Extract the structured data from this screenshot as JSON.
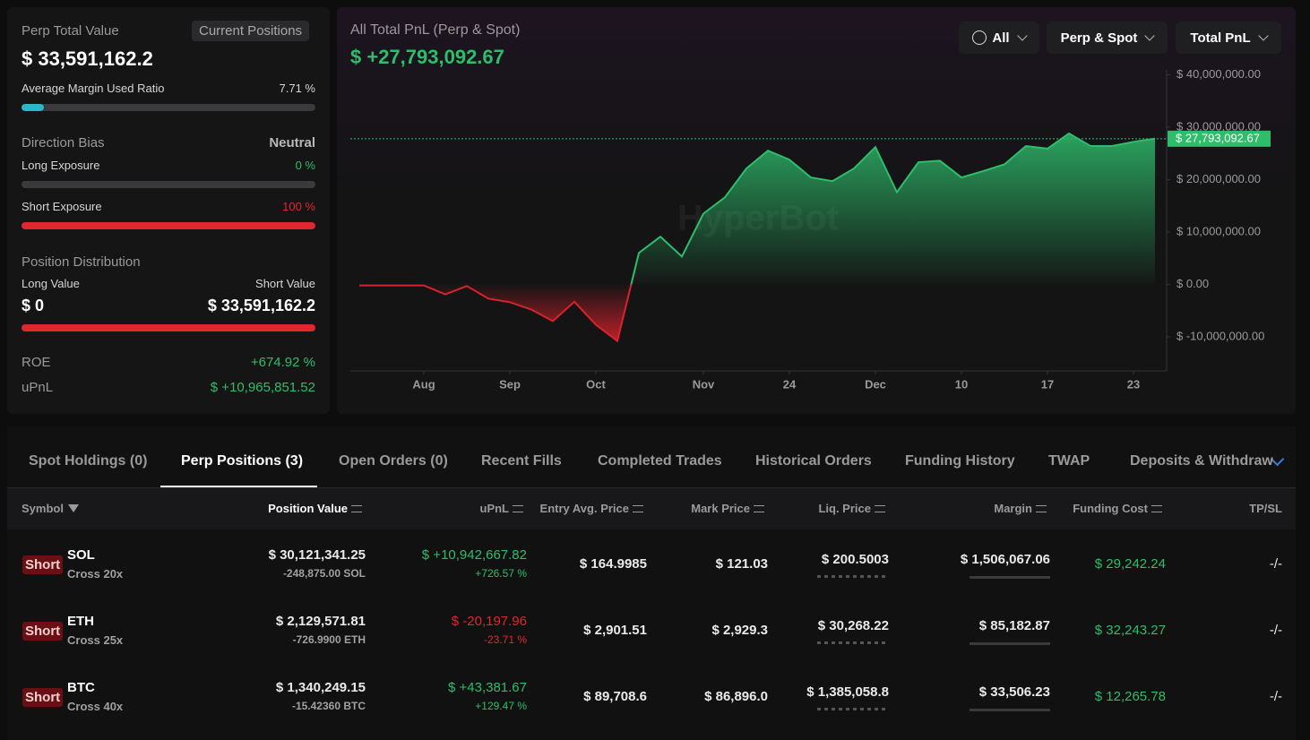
{
  "summary": {
    "perp_total_value_label": "Perp Total Value",
    "current_positions": "Current Positions",
    "perp_total_value": "$ 33,591,162.2",
    "margin_ratio_label": "Average Margin Used Ratio",
    "margin_ratio": {
      "value": 7.71,
      "label": "7.71 %"
    },
    "direction_bias_label": "Direction Bias",
    "direction_bias": "Neutral",
    "long_exposure_label": "Long Exposure",
    "long_exposure": {
      "value": 0,
      "label": "0 %"
    },
    "short_exposure_label": "Short Exposure",
    "short_exposure": {
      "value": 100,
      "label": "100 %"
    },
    "position_distribution_label": "Position Distribution",
    "long_value_label": "Long Value",
    "short_value_label": "Short Value",
    "long_value": "$ 0",
    "short_value": "$ 33,591,162.2",
    "roe_label": "ROE",
    "roe": "+674.92 %",
    "upnl_label": "uPnL",
    "upnl": "$ +10,965,851.52"
  },
  "pnl_chart": {
    "type": "area",
    "title": "All Total PnL (Perp & Spot)",
    "headline": "$ +27,793,092.67",
    "watermark": "HyperBot",
    "filters": [
      "All",
      "Perp & Spot",
      "Total PnL"
    ],
    "values": [
      -200000,
      -200000,
      -200000,
      -200000,
      -1900000,
      -300000,
      -2700000,
      -3400000,
      -4800000,
      -7000000,
      -3300000,
      -7700000,
      -10800000,
      6000000,
      9100000,
      5300000,
      13500000,
      16600000,
      22100000,
      25500000,
      23800000,
      20400000,
      19700000,
      22100000,
      26200000,
      17600000,
      23300000,
      23600000,
      20400000,
      21600000,
      22900000,
      26400000,
      25900000,
      28800000,
      26400000,
      26400000,
      27200000,
      27793092.67
    ],
    "last_value_label": "$ 27,793,092.67",
    "xlim": [
      0,
      37
    ],
    "xticks": [
      {
        "value": 3,
        "label": "Aug"
      },
      {
        "value": 7,
        "label": "Sep"
      },
      {
        "value": 11,
        "label": "Oct"
      },
      {
        "value": 16,
        "label": "Nov"
      },
      {
        "value": 20,
        "label": "24"
      },
      {
        "value": 24,
        "label": "Dec"
      },
      {
        "value": 28,
        "label": "10"
      },
      {
        "value": 32,
        "label": "17"
      },
      {
        "value": 36,
        "label": "23"
      }
    ],
    "ylim": [
      -16500000,
      42000000
    ],
    "yticks": [
      {
        "value": -10000000,
        "label": "$ -10,000,000.00"
      },
      {
        "value": 0,
        "label": "$ 0.00"
      },
      {
        "value": 10000000,
        "label": "$ 10,000,000.00"
      },
      {
        "value": 20000000,
        "label": "$ 20,000,000.00"
      },
      {
        "value": 30000000,
        "label": "$ 30,000,000.00"
      },
      {
        "value": 40000000,
        "label": "$ 40,000,000.00"
      }
    ],
    "colors": {
      "positive": "#2ebd6b",
      "negative": "#d9222c"
    }
  },
  "positions": {
    "tabs": [
      "Spot Holdings (0)",
      "Perp Positions (3)",
      "Open Orders (0)",
      "Recent Fills",
      "Completed Trades",
      "Historical Orders",
      "Funding History",
      "TWAP",
      "Deposits & Withdraw"
    ],
    "active_tab": 1,
    "columns": [
      "Symbol",
      "Position Value",
      "uPnL",
      "Entry Avg. Price",
      "Mark Price",
      "Liq. Price",
      "Margin",
      "Funding Cost",
      "TP/SL"
    ],
    "rows": [
      {
        "side": "Short",
        "symbol": "SOL",
        "leverage": "Cross 20x",
        "position_value": "$ 30,121,341.25",
        "size": "-248,875.00 SOL",
        "upnl": "$ +10,942,667.82",
        "upnl_pct": "+726.57 %",
        "entry": "$ 164.9985",
        "mark": "$ 121.03",
        "liq": "$ 200.5003",
        "margin": "$ 1,506,067.06",
        "funding": "$ 29,242.24",
        "tpsl": "-/-"
      },
      {
        "side": "Short",
        "symbol": "ETH",
        "leverage": "Cross 25x",
        "position_value": "$ 2,129,571.81",
        "size": "-726.9900 ETH",
        "upnl": "$ -20,197.96",
        "upnl_pct": "-23.71 %",
        "entry": "$ 2,901.51",
        "mark": "$ 2,929.3",
        "liq": "$ 30,268.22",
        "margin": "$ 85,182.87",
        "funding": "$ 32,243.27",
        "tpsl": "-/-"
      },
      {
        "side": "Short",
        "symbol": "BTC",
        "leverage": "Cross 40x",
        "position_value": "$ 1,340,249.15",
        "size": "-15.42360 BTC",
        "upnl": "$ +43,381.67",
        "upnl_pct": "+129.47 %",
        "entry": "$ 89,708.6",
        "mark": "$ 86,896.0",
        "liq": "$ 1,385,058.8",
        "margin": "$ 33,506.23",
        "funding": "$ 12,265.78",
        "tpsl": "-/-"
      }
    ]
  }
}
